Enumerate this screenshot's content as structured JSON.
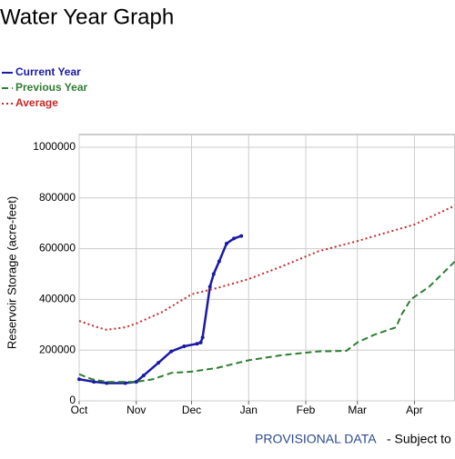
{
  "chart_data": {
    "type": "line",
    "title": "Water Year Graph",
    "y_label": "Reservoir Storage (acre-feet)",
    "xlim": [
      0,
      204
    ],
    "xticks": [
      {
        "value": 0,
        "label": "Oct"
      },
      {
        "value": 31,
        "label": "Nov"
      },
      {
        "value": 61,
        "label": "Dec"
      },
      {
        "value": 92,
        "label": "Jan"
      },
      {
        "value": 123,
        "label": "Feb"
      },
      {
        "value": 151,
        "label": "Mar"
      },
      {
        "value": 182,
        "label": "Apr"
      }
    ],
    "ylim": [
      0,
      1050000
    ],
    "yticks": [
      0,
      200000,
      400000,
      600000,
      800000,
      1000000
    ],
    "grid": true,
    "legend": "top-left",
    "series": [
      {
        "name": "Current Year",
        "color": "#1a1aa6",
        "style": "solid",
        "x": [
          0,
          8,
          15,
          25,
          31,
          35,
          43,
          50,
          57,
          64,
          66,
          67,
          71,
          73,
          76,
          80,
          84,
          88
        ],
        "values": [
          85000,
          75000,
          70000,
          70000,
          75000,
          100000,
          150000,
          195000,
          215000,
          225000,
          230000,
          250000,
          450000,
          500000,
          550000,
          620000,
          640000,
          650000
        ]
      },
      {
        "name": "Previous Year",
        "color": "#2e7d32",
        "style": "dashed",
        "x": [
          0,
          7,
          15,
          31,
          40,
          50,
          61,
          75,
          92,
          110,
          130,
          145,
          151,
          160,
          172,
          175,
          180,
          190,
          204
        ],
        "values": [
          105000,
          85000,
          75000,
          75000,
          85000,
          110000,
          115000,
          130000,
          160000,
          180000,
          195000,
          197000,
          230000,
          260000,
          290000,
          340000,
          400000,
          450000,
          550000
        ]
      },
      {
        "name": "Average",
        "color": "#c62828",
        "style": "dotted",
        "x": [
          0,
          10,
          15,
          25,
          31,
          45,
          61,
          75,
          92,
          110,
          130,
          151,
          170,
          182,
          204
        ],
        "values": [
          315000,
          290000,
          280000,
          290000,
          305000,
          350000,
          420000,
          445000,
          480000,
          530000,
          590000,
          630000,
          670000,
          695000,
          770000
        ]
      }
    ]
  },
  "footer": {
    "provisional": "PROVISIONAL DATA",
    "note": "- Subject to"
  }
}
